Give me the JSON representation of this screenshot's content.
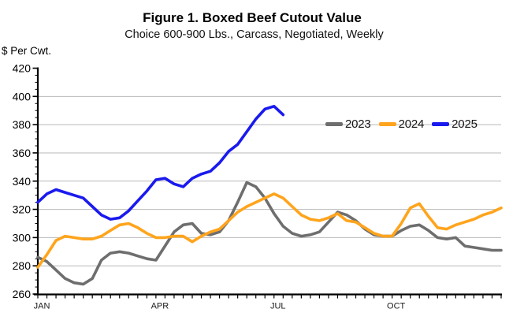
{
  "title": "Figure 1. Boxed Beef Cutout Value",
  "subtitle": "Choice 600-900 Lbs., Carcass, Negotiated, Weekly",
  "y_axis_unit_label": "$ Per Cwt.",
  "legend": {
    "items": [
      {
        "label": "2023",
        "color": "#6e6e6e"
      },
      {
        "label": "2024",
        "color": "#ffa41c"
      },
      {
        "label": "2025",
        "color": "#1a1aee"
      }
    ]
  },
  "chart_data": {
    "type": "line",
    "title": "Figure 1. Boxed Beef Cutout Value",
    "subtitle": "Choice 600-900 Lbs., Carcass, Negotiated, Weekly",
    "ylabel": "$ Per Cwt.",
    "ylim": [
      260,
      420
    ],
    "y_major_step": 20,
    "y_minor_step": 5,
    "y_tick_labels": [
      "260",
      "280",
      "300",
      "320",
      "340",
      "360",
      "380",
      "400",
      "420"
    ],
    "x_unit": "week",
    "x_total_weeks": 52,
    "x_month_labels": [
      {
        "label": "JAN",
        "week": 1
      },
      {
        "label": "APR",
        "week": 14
      },
      {
        "label": "JUL",
        "week": 27
      },
      {
        "label": "OCT",
        "week": 40
      }
    ],
    "grid": "horizontal",
    "gridline_color": "#b9b9b9",
    "axis_color": "#000000",
    "legend_position": "inside-top-right",
    "series": [
      {
        "name": "2023",
        "color": "#6e6e6e",
        "values": [
          286,
          283,
          277,
          271,
          268,
          267,
          271,
          284,
          289,
          290,
          289,
          287,
          285,
          284,
          294,
          304,
          309,
          310,
          303,
          302,
          304,
          312,
          325,
          339,
          336,
          328,
          317,
          308,
          303,
          301,
          302,
          304,
          311,
          318,
          316,
          312,
          306,
          302,
          301,
          301,
          305,
          308,
          309,
          305,
          300,
          299,
          300,
          294,
          293,
          292,
          291,
          291
        ]
      },
      {
        "name": "2024",
        "color": "#ffa41c",
        "values": [
          279,
          288,
          298,
          301,
          300,
          299,
          299,
          301,
          305,
          309,
          310,
          307,
          303,
          300,
          300,
          301,
          301,
          297,
          301,
          304,
          306,
          312,
          318,
          322,
          325,
          328,
          331,
          328,
          322,
          316,
          313,
          312,
          314,
          317,
          312,
          311,
          307,
          303,
          301,
          301,
          310,
          321,
          324,
          315,
          307,
          306,
          309,
          311,
          313,
          316,
          318,
          321
        ]
      },
      {
        "name": "2025",
        "color": "#1a1aee",
        "values": [
          325,
          331,
          334,
          332,
          330,
          328,
          322,
          316,
          313,
          314,
          319,
          326,
          333,
          341,
          342,
          338,
          336,
          342,
          345,
          347,
          353,
          361,
          366,
          375,
          384,
          391,
          393,
          387
        ]
      }
    ]
  }
}
